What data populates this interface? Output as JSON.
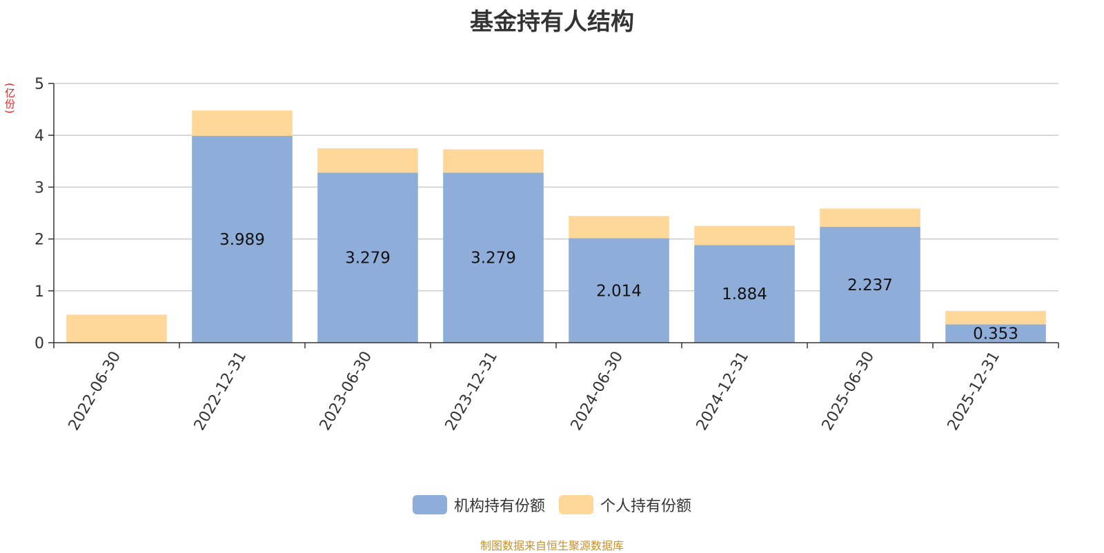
{
  "chart_data": {
    "type": "bar",
    "stacked": true,
    "title": "基金持有人结构",
    "unit_label": "(亿份)",
    "categories": [
      "2022-06-30",
      "2022-12-31",
      "2023-06-30",
      "2023-12-31",
      "2024-06-30",
      "2024-12-31",
      "2025-06-30",
      "2025-12-31"
    ],
    "series": [
      {
        "name": "机构持有份额",
        "color": "#8eadd9",
        "values": [
          0,
          3.989,
          3.279,
          3.279,
          2.014,
          1.884,
          2.237,
          0.353
        ],
        "labels": [
          "",
          "3.989",
          "3.279",
          "3.279",
          "2.014",
          "1.884",
          "2.237",
          "0.353"
        ]
      },
      {
        "name": "个人持有份额",
        "color": "#ffd899",
        "values": [
          0.54,
          0.49,
          0.47,
          0.45,
          0.43,
          0.37,
          0.35,
          0.26
        ]
      }
    ],
    "yticks": [
      "0",
      "1",
      "2",
      "3",
      "4",
      "5"
    ],
    "ylim": [
      0,
      5
    ],
    "grid": true,
    "legend_position": "bottom-center"
  },
  "source": "制图数据来自恒生聚源数据库"
}
